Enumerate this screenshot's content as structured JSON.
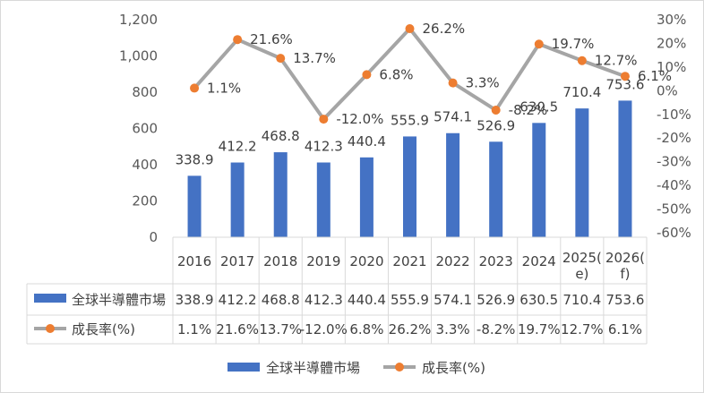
{
  "chart_data": {
    "type": "bar",
    "categories": [
      "2016",
      "2017",
      "2018",
      "2019",
      "2020",
      "2021",
      "2022",
      "2023",
      "2024",
      "2025(e)",
      "2026(f)"
    ],
    "category_lines": [
      [
        "2016"
      ],
      [
        "2017"
      ],
      [
        "2018"
      ],
      [
        "2019"
      ],
      [
        "2020"
      ],
      [
        "2021"
      ],
      [
        "2022"
      ],
      [
        "2023"
      ],
      [
        "2024"
      ],
      [
        "2025(",
        "e)"
      ],
      [
        "2026(",
        "f)"
      ]
    ],
    "series": [
      {
        "name": "全球半導體市場",
        "type": "bar",
        "axis": "left",
        "color": "#4472c4",
        "values": [
          338.9,
          412.2,
          468.8,
          412.3,
          440.4,
          555.9,
          574.1,
          526.9,
          630.5,
          710.4,
          753.6
        ],
        "labels": [
          "338.9",
          "412.2",
          "468.8",
          "412.3",
          "440.4",
          "555.9",
          "574.1",
          "526.9",
          "630.5",
          "710.4",
          "753.6"
        ],
        "label_index_start": 0,
        "label_shown": [
          true,
          true,
          true,
          true,
          true,
          true,
          true,
          true,
          true,
          true,
          true
        ]
      },
      {
        "name": "成長率(%)",
        "type": "line",
        "axis": "right",
        "color": "#a5a5a5",
        "marker_color": "#ed7d31",
        "values": [
          1.1,
          21.6,
          13.7,
          -12.0,
          6.8,
          26.2,
          3.3,
          -8.2,
          19.7,
          12.7,
          6.1
        ],
        "labels": [
          "1.1%",
          "21.6%",
          "13.7%",
          "-12.0%",
          "6.8%",
          "26.2%",
          "3.3%",
          "-8.2%",
          "19.7%",
          "12.7%",
          "6.1%"
        ]
      }
    ],
    "left_axis": {
      "min": 0,
      "max": 1200,
      "ticks": [
        0,
        200,
        400,
        600,
        800,
        1000,
        1200
      ],
      "tick_labels": [
        "0",
        "200",
        "400",
        "600",
        "800",
        "1,000",
        "1,200"
      ]
    },
    "right_axis": {
      "min": -60,
      "max": 30,
      "ticks": [
        -60,
        -50,
        -40,
        -30,
        -20,
        -10,
        0,
        10,
        20,
        30
      ],
      "tick_labels": [
        "-60%",
        "-50%",
        "-40%",
        "-30%",
        "-20%",
        "-10%",
        "0%",
        "10%",
        "20%",
        "30%"
      ]
    },
    "data_table": true,
    "legend": {
      "position": "bottom",
      "items": [
        "全球半導體市場",
        "成長率(%)"
      ]
    },
    "grid": false
  }
}
